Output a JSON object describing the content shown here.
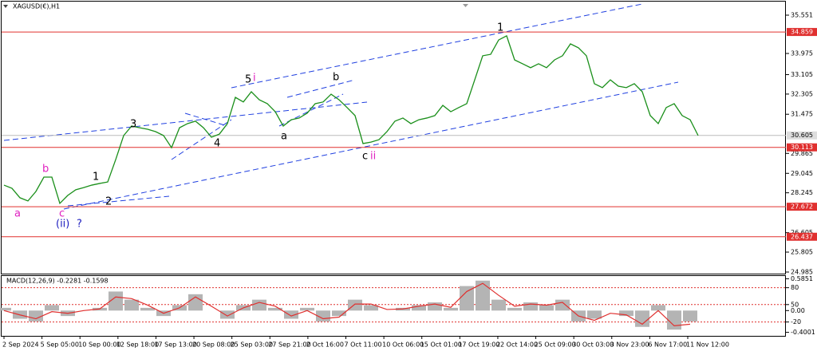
{
  "chart_data": [
    {
      "type": "line",
      "title": "XAGUSD(€),H1",
      "color": "#1a8f1a",
      "values": [
        28.56,
        28.43,
        28.04,
        27.91,
        28.3,
        28.89,
        28.89,
        27.81,
        28.14,
        28.37,
        28.46,
        28.56,
        28.63,
        28.69,
        29.61,
        30.6,
        30.99,
        30.92,
        30.86,
        30.76,
        30.6,
        30.1,
        30.92,
        31.09,
        31.19,
        30.92,
        30.53,
        30.66,
        31.09,
        32.17,
        31.98,
        32.4,
        32.07,
        31.91,
        31.58,
        30.99,
        31.25,
        31.32,
        31.52,
        31.91,
        31.98,
        32.3,
        32.07,
        31.75,
        31.42,
        30.27,
        30.33,
        30.43,
        30.76,
        31.19,
        31.32,
        31.09,
        31.25,
        31.32,
        31.42,
        31.84,
        31.58,
        31.75,
        31.91,
        32.89,
        33.88,
        33.94,
        34.53,
        34.7,
        33.71,
        33.55,
        33.39,
        33.55,
        33.39,
        33.71,
        33.88,
        34.37,
        34.21,
        33.88,
        32.73,
        32.57,
        32.89,
        32.63,
        32.57,
        32.73,
        32.4,
        31.42,
        31.09,
        31.75,
        31.91,
        31.42,
        31.25,
        30.6
      ],
      "ylim": [
        24.92,
        36.01
      ],
      "yticks": [
        35.551,
        33.975,
        33.105,
        32.305,
        31.475,
        29.865,
        29.045,
        28.245,
        26.605,
        25.805,
        24.985
      ],
      "levels": [
        34.859,
        30.113,
        27.672,
        26.437
      ],
      "level_color": "#e0302f",
      "last_price": 30.605,
      "xtick_labels": [
        "2 Sep 2024",
        "5 Sep 05:00",
        "10 Sep 00:00",
        "12 Sep 18:00",
        "17 Sep 13:00",
        "20 Sep 08:00",
        "25 Sep 03:00",
        "27 Sep 21:00",
        "2 Oct 16:00",
        "7 Oct 11:00",
        "10 Oct 06:00",
        "15 Oct 01:00",
        "17 Oct 19:00",
        "22 Oct 14:00",
        "25 Oct 09:00",
        "30 Oct 03:00",
        "3 Nov 23:00",
        "6 Nov 17:00",
        "11 Nov 12:00"
      ],
      "annotations": [
        {
          "text": "a",
          "color": "#e020c0"
        },
        {
          "text": "b",
          "color": "#e020c0"
        },
        {
          "text": "c",
          "color": "#e020c0"
        },
        {
          "text": "(ii)",
          "color": "#2020c0"
        },
        {
          "text": "?",
          "color": "#2020c0"
        },
        {
          "text": "1",
          "color": "#000000"
        },
        {
          "text": "2",
          "color": "#000000"
        },
        {
          "text": "3",
          "color": "#000000"
        },
        {
          "text": "4",
          "color": "#000000"
        },
        {
          "text": "5",
          "color": "#000000"
        },
        {
          "text": "i",
          "color": "#e020c0"
        },
        {
          "text": "a",
          "color": "#000000"
        },
        {
          "text": "b",
          "color": "#000000"
        },
        {
          "text": "c",
          "color": "#000000"
        },
        {
          "text": "ii",
          "color": "#e020c0"
        },
        {
          "text": "1",
          "color": "#000000"
        }
      ]
    },
    {
      "type": "bar",
      "title": "MACD(12,26,9) -0.2281 -0.1598",
      "color": "#b4b4b4",
      "signal_color": "#e0302f",
      "values": [
        0.05,
        -0.15,
        -0.2,
        0.1,
        -0.1,
        0.0,
        0.05,
        0.35,
        0.2,
        0.05,
        -0.1,
        0.1,
        0.3,
        0.0,
        -0.15,
        0.1,
        0.2,
        0.05,
        -0.15,
        0.05,
        -0.2,
        -0.1,
        0.2,
        0.1,
        0.0,
        0.05,
        0.1,
        0.15,
        0.05,
        0.45,
        0.55,
        0.2,
        0.05,
        0.15,
        0.1,
        0.2,
        -0.2,
        -0.15,
        0.0,
        -0.1,
        -0.3,
        0.1,
        -0.35,
        -0.2
      ],
      "signal": [
        0.0,
        -0.08,
        -0.15,
        -0.02,
        -0.05,
        0.0,
        0.03,
        0.25,
        0.22,
        0.1,
        -0.05,
        0.05,
        0.25,
        0.08,
        -0.1,
        0.05,
        0.15,
        0.08,
        -0.1,
        0.0,
        -0.15,
        -0.12,
        0.12,
        0.12,
        0.02,
        0.03,
        0.08,
        0.12,
        0.06,
        0.35,
        0.5,
        0.28,
        0.08,
        0.12,
        0.1,
        0.15,
        -0.1,
        -0.18,
        -0.05,
        -0.08,
        -0.25,
        0.0,
        -0.28,
        -0.25
      ],
      "ylim": [
        -0.45,
        0.62
      ],
      "yticks": [
        0.5851,
        {
          "value": 0.42,
          "label": "80"
        },
        {
          "value": 0.11,
          "label": "50"
        },
        {
          "value": 0,
          "label": "0.00"
        },
        {
          "value": -0.21,
          "label": "-20"
        },
        -0.4001
      ]
    }
  ]
}
